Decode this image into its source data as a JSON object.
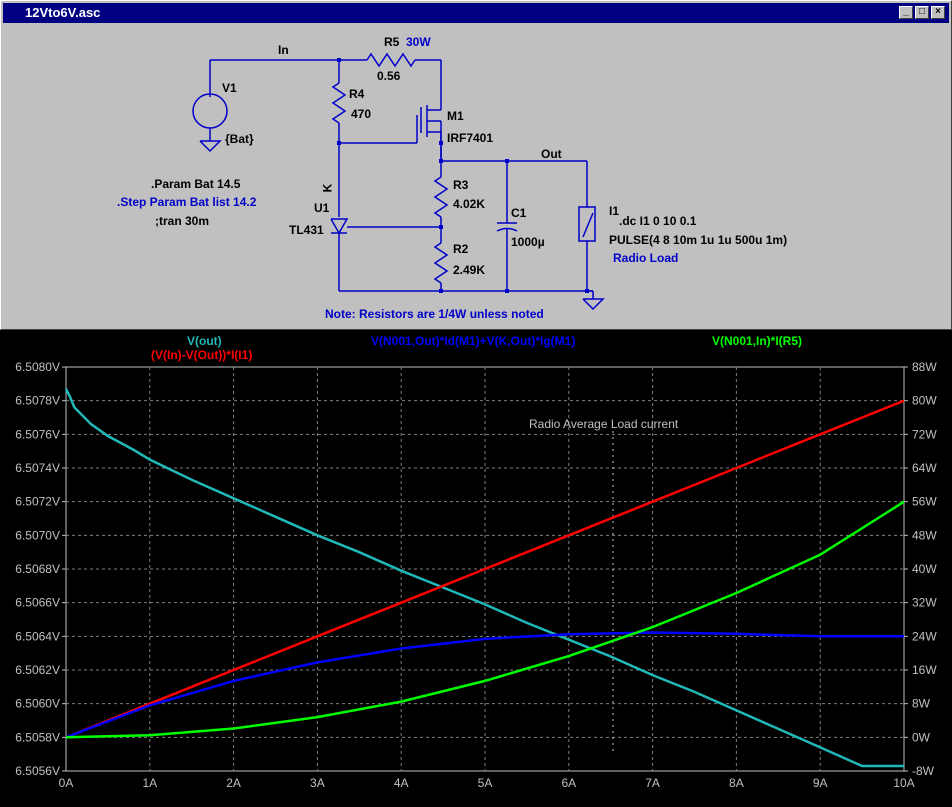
{
  "window": {
    "title": "12Vto6V.asc",
    "buttons": [
      "_",
      "□",
      "×"
    ]
  },
  "schematic": {
    "net_in": "In",
    "net_out": "Out",
    "net_k": "K",
    "v1": {
      "name": "V1",
      "value": "{Bat}"
    },
    "r5": {
      "name": "R5",
      "power": "30W",
      "value": "0.56"
    },
    "r4": {
      "name": "R4",
      "value": "470"
    },
    "m1": {
      "name": "M1",
      "model": "IRF7401"
    },
    "r3": {
      "name": "R3",
      "value": "4.02K"
    },
    "r2": {
      "name": "R2",
      "value": "2.49K"
    },
    "c1": {
      "name": "C1",
      "value": "1000µ"
    },
    "u1": {
      "name": "U1",
      "model": "TL431"
    },
    "i1": {
      "name": "I1",
      "dc": ".dc I1 0 10 0.1",
      "pulse": "PULSE(4 8 10m 1u 1u 500u 1m)",
      "label": "Radio Load"
    },
    "directives": {
      "param": ".Param Bat 14.5",
      "step": ".Step Param Bat list 14.2",
      "tran": ";tran 30m"
    },
    "note": "Note: Resistors are 1/4W unless noted"
  },
  "plot": {
    "traces": {
      "vout": "V(out)",
      "pin": "(V(In)-V(Out))*I(I1)",
      "pm1": "V(N001,Out)*Id(M1)+V(K,Out)*Ig(M1)",
      "pr5": "V(N001,In)*I(R5)"
    },
    "annotation": "Radio Average Load current",
    "colors": {
      "vout": "#20b8b8",
      "pin": "#ff0000",
      "pm1": "#0000ff",
      "pr5": "#00ff00",
      "grid": "#808080",
      "axis": "#c0c0c0"
    }
  },
  "chart_data": {
    "type": "line",
    "x_ticks": [
      "0A",
      "1A",
      "2A",
      "3A",
      "4A",
      "5A",
      "6A",
      "7A",
      "8A",
      "9A",
      "10A"
    ],
    "y_left_ticks": [
      "6.5080V",
      "6.5078V",
      "6.5076V",
      "6.5074V",
      "6.5072V",
      "6.5070V",
      "6.5068V",
      "6.5066V",
      "6.5064V",
      "6.5062V",
      "6.5060V",
      "6.5058V",
      "6.5056V"
    ],
    "y_right_ticks": [
      "88W",
      "80W",
      "72W",
      "64W",
      "56W",
      "48W",
      "40W",
      "32W",
      "24W",
      "16W",
      "8W",
      "0W",
      "-8W"
    ],
    "xlim": [
      0,
      10
    ],
    "ylim_left": [
      6.5056,
      6.508
    ],
    "ylim_right": [
      -8,
      88
    ],
    "series": [
      {
        "name": "V(out)",
        "axis": "left",
        "color": "#20b8b8",
        "x": [
          0,
          0.05,
          0.1,
          0.3,
          0.5,
          0.8,
          1,
          1.5,
          2,
          2.5,
          3,
          3.5,
          4,
          4.5,
          5,
          5.5,
          6,
          6.5,
          7,
          7.5,
          8,
          8.5,
          9,
          9.5,
          10
        ],
        "y": [
          6.50787,
          6.50782,
          6.50776,
          6.50766,
          6.50759,
          6.50751,
          6.50745,
          6.50733,
          6.50722,
          6.50711,
          6.507,
          6.5069,
          6.50679,
          6.50669,
          6.50659,
          6.50648,
          6.50638,
          6.50628,
          6.50617,
          6.50607,
          6.50596,
          6.50585,
          6.50574,
          6.50563,
          6.50563
        ]
      },
      {
        "name": "(V(In)-V(Out))*I(I1)",
        "axis": "right",
        "color": "#ff0000",
        "x": [
          0,
          1,
          2,
          3,
          4,
          5,
          6,
          7,
          8,
          9,
          10
        ],
        "y": [
          0,
          8,
          16,
          24,
          32,
          40,
          48,
          56,
          64,
          72,
          80
        ]
      },
      {
        "name": "V(N001,Out)*Id(M1)+V(K,Out)*Ig(M1)",
        "axis": "right",
        "color": "#0000ff",
        "x": [
          0,
          1,
          2,
          3,
          4,
          5,
          6,
          7,
          8,
          9,
          10
        ],
        "y": [
          0,
          7.6,
          13.4,
          17.8,
          21.1,
          23.4,
          24.5,
          24.9,
          24.6,
          24.0,
          24.0
        ]
      },
      {
        "name": "V(N001,In)*I(R5)",
        "axis": "right",
        "color": "#00ff00",
        "x": [
          0,
          1,
          2,
          3,
          4,
          5,
          6,
          7,
          8,
          9,
          10
        ],
        "y": [
          0,
          0.5,
          2.1,
          4.8,
          8.5,
          13.4,
          19.3,
          26.2,
          34.3,
          43.4,
          56.0
        ]
      }
    ]
  }
}
